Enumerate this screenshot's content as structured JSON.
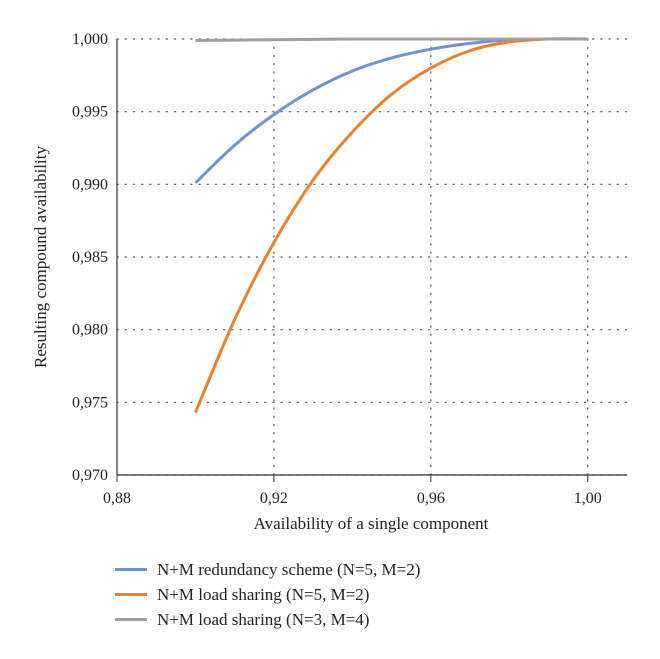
{
  "chart_data": {
    "type": "line",
    "xlabel": "Availability of a single component",
    "ylabel": "Resulting compound availability",
    "xlim": [
      0.88,
      1.01
    ],
    "ylim": [
      0.97,
      1.0
    ],
    "xticks": [
      0.88,
      0.92,
      0.96,
      1.0
    ],
    "xtick_labels": [
      "0,88",
      "0,92",
      "0,96",
      "1,00"
    ],
    "yticks": [
      0.97,
      0.975,
      0.98,
      0.985,
      0.99,
      0.995,
      1.0
    ],
    "ytick_labels": [
      "0,970",
      "0,975",
      "0,980",
      "0,985",
      "0,990",
      "0,995",
      "1,000"
    ],
    "grid": "dotted",
    "legend_position": "bottom",
    "series": [
      {
        "name": "N+M redundancy scheme (N=5, M=2)",
        "color": "#6f93cf",
        "x": [
          0.9,
          0.91,
          0.92,
          0.93,
          0.94,
          0.95,
          0.96,
          0.97,
          0.98,
          0.99,
          1.0
        ],
        "y": [
          0.9901,
          0.9927,
          0.9948,
          0.9965,
          0.9978,
          0.9987,
          0.9993,
          0.9997,
          0.99995,
          1.0,
          1.0
        ]
      },
      {
        "name": "N+M load sharing (N=5, M=2)",
        "color": "#f07f2c",
        "x": [
          0.9,
          0.91,
          0.92,
          0.93,
          0.94,
          0.95,
          0.96,
          0.97,
          0.98,
          0.99,
          1.0
        ],
        "y": [
          0.9743,
          0.9807,
          0.986,
          0.9903,
          0.9936,
          0.9962,
          0.998,
          0.9992,
          0.9998,
          1.0,
          1.0
        ]
      },
      {
        "name": "N+M load sharing (N=3, M=4)",
        "color": "#a59c9c",
        "x": [
          0.9,
          0.92,
          0.94,
          0.96,
          0.98,
          1.0
        ],
        "y": [
          0.9999,
          0.99995,
          1.0,
          1.0,
          1.0,
          1.0
        ]
      }
    ]
  }
}
